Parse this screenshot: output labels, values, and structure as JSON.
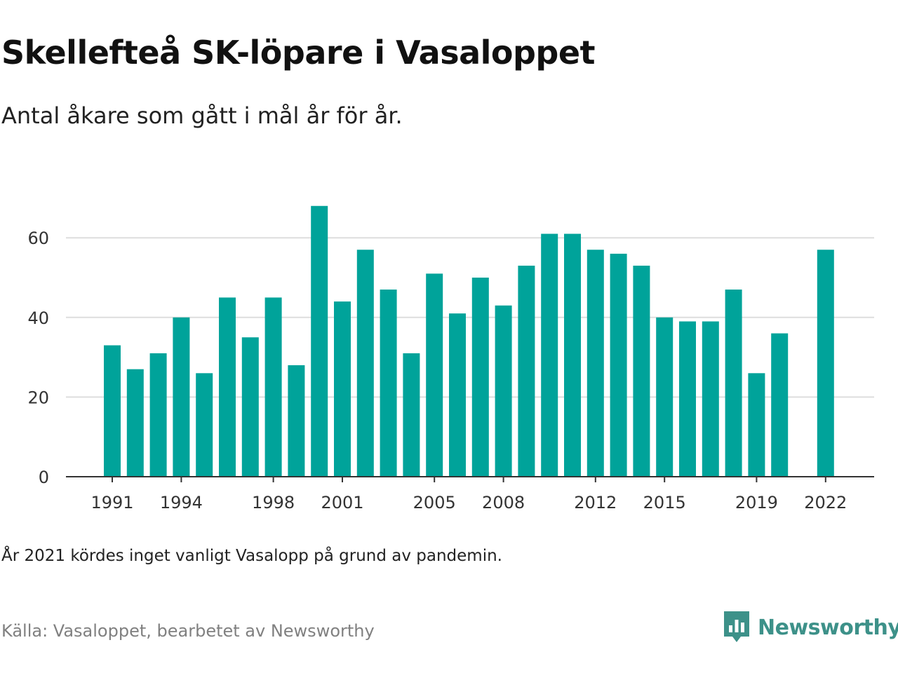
{
  "title": "Skellefteå SK-löpare i Vasaloppet",
  "subtitle": "Antal åkare som gått i mål år för år.",
  "footnote": "År 2021 kördes inget vanligt Vasalopp på grund av pandemin.",
  "source": "Källa: Vasaloppet, bearbetet av Newsworthy",
  "logo": {
    "text": "Newsworthy",
    "icon": "newsworthy-logo-icon",
    "color": "#3d9189"
  },
  "colors": {
    "bar": "#00a39a",
    "grid": "#dddddd",
    "axis": "#333333",
    "text": "#333333"
  },
  "chart_data": {
    "type": "bar",
    "categories": [
      1991,
      1992,
      1993,
      1994,
      1995,
      1996,
      1997,
      1998,
      1999,
      2000,
      2001,
      2002,
      2003,
      2004,
      2005,
      2006,
      2007,
      2008,
      2009,
      2010,
      2011,
      2012,
      2013,
      2014,
      2015,
      2016,
      2017,
      2018,
      2019,
      2020,
      2021,
      2022
    ],
    "values": [
      33,
      27,
      31,
      40,
      26,
      45,
      35,
      45,
      28,
      68,
      44,
      57,
      47,
      31,
      51,
      41,
      50,
      43,
      53,
      61,
      61,
      57,
      56,
      53,
      40,
      39,
      39,
      47,
      26,
      36,
      null,
      57
    ],
    "xticks": [
      1991,
      1994,
      1998,
      2001,
      2005,
      2008,
      2012,
      2015,
      2019,
      2022
    ],
    "yticks": [
      0,
      20,
      40,
      60
    ],
    "ylim": [
      0,
      70
    ],
    "grid": "horizontal"
  }
}
